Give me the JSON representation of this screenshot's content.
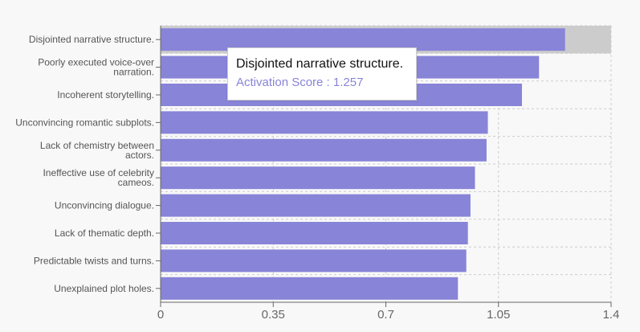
{
  "chart_data": {
    "type": "bar",
    "orientation": "horizontal",
    "categories": [
      "Disjointed narrative structure.",
      "Poorly executed voice-over narration.",
      "Incoherent storytelling.",
      "Unconvincing romantic subplots.",
      "Lack of chemistry between actors.",
      "Ineffective use of celebrity cameos.",
      "Unconvincing dialogue.",
      "Lack of thematic depth.",
      "Predictable twists and turns.",
      "Unexplained plot holes."
    ],
    "category_lines": [
      [
        "Disjointed narrative structure."
      ],
      [
        "Poorly executed voice-over",
        "narration."
      ],
      [
        "Incoherent storytelling."
      ],
      [
        "Unconvincing romantic subplots."
      ],
      [
        "Lack of chemistry between",
        "actors."
      ],
      [
        "Ineffective use of celebrity",
        "cameos."
      ],
      [
        "Unconvincing dialogue."
      ],
      [
        "Lack of thematic depth."
      ],
      [
        "Predictable twists and turns."
      ],
      [
        "Unexplained plot holes."
      ]
    ],
    "values": [
      1.257,
      1.176,
      1.123,
      1.017,
      1.013,
      0.977,
      0.963,
      0.955,
      0.95,
      0.924
    ],
    "x_ticks": [
      "0",
      "0.35",
      "0.7",
      "1.05",
      "1.4"
    ],
    "xlim": [
      0,
      1.4
    ],
    "grid": true,
    "highlighted_index": 0,
    "title": "",
    "xlabel": "",
    "ylabel": ""
  },
  "tooltip": {
    "title": "Disjointed narrative structure.",
    "label": "Activation Score",
    "value": "1.257",
    "text": "Activation Score : 1.257"
  },
  "colors": {
    "bar": "#8884d8",
    "highlight": "#cccccc",
    "grid": "#cccccc",
    "axis": "#666666",
    "tooltip_value": "#8884d8"
  }
}
